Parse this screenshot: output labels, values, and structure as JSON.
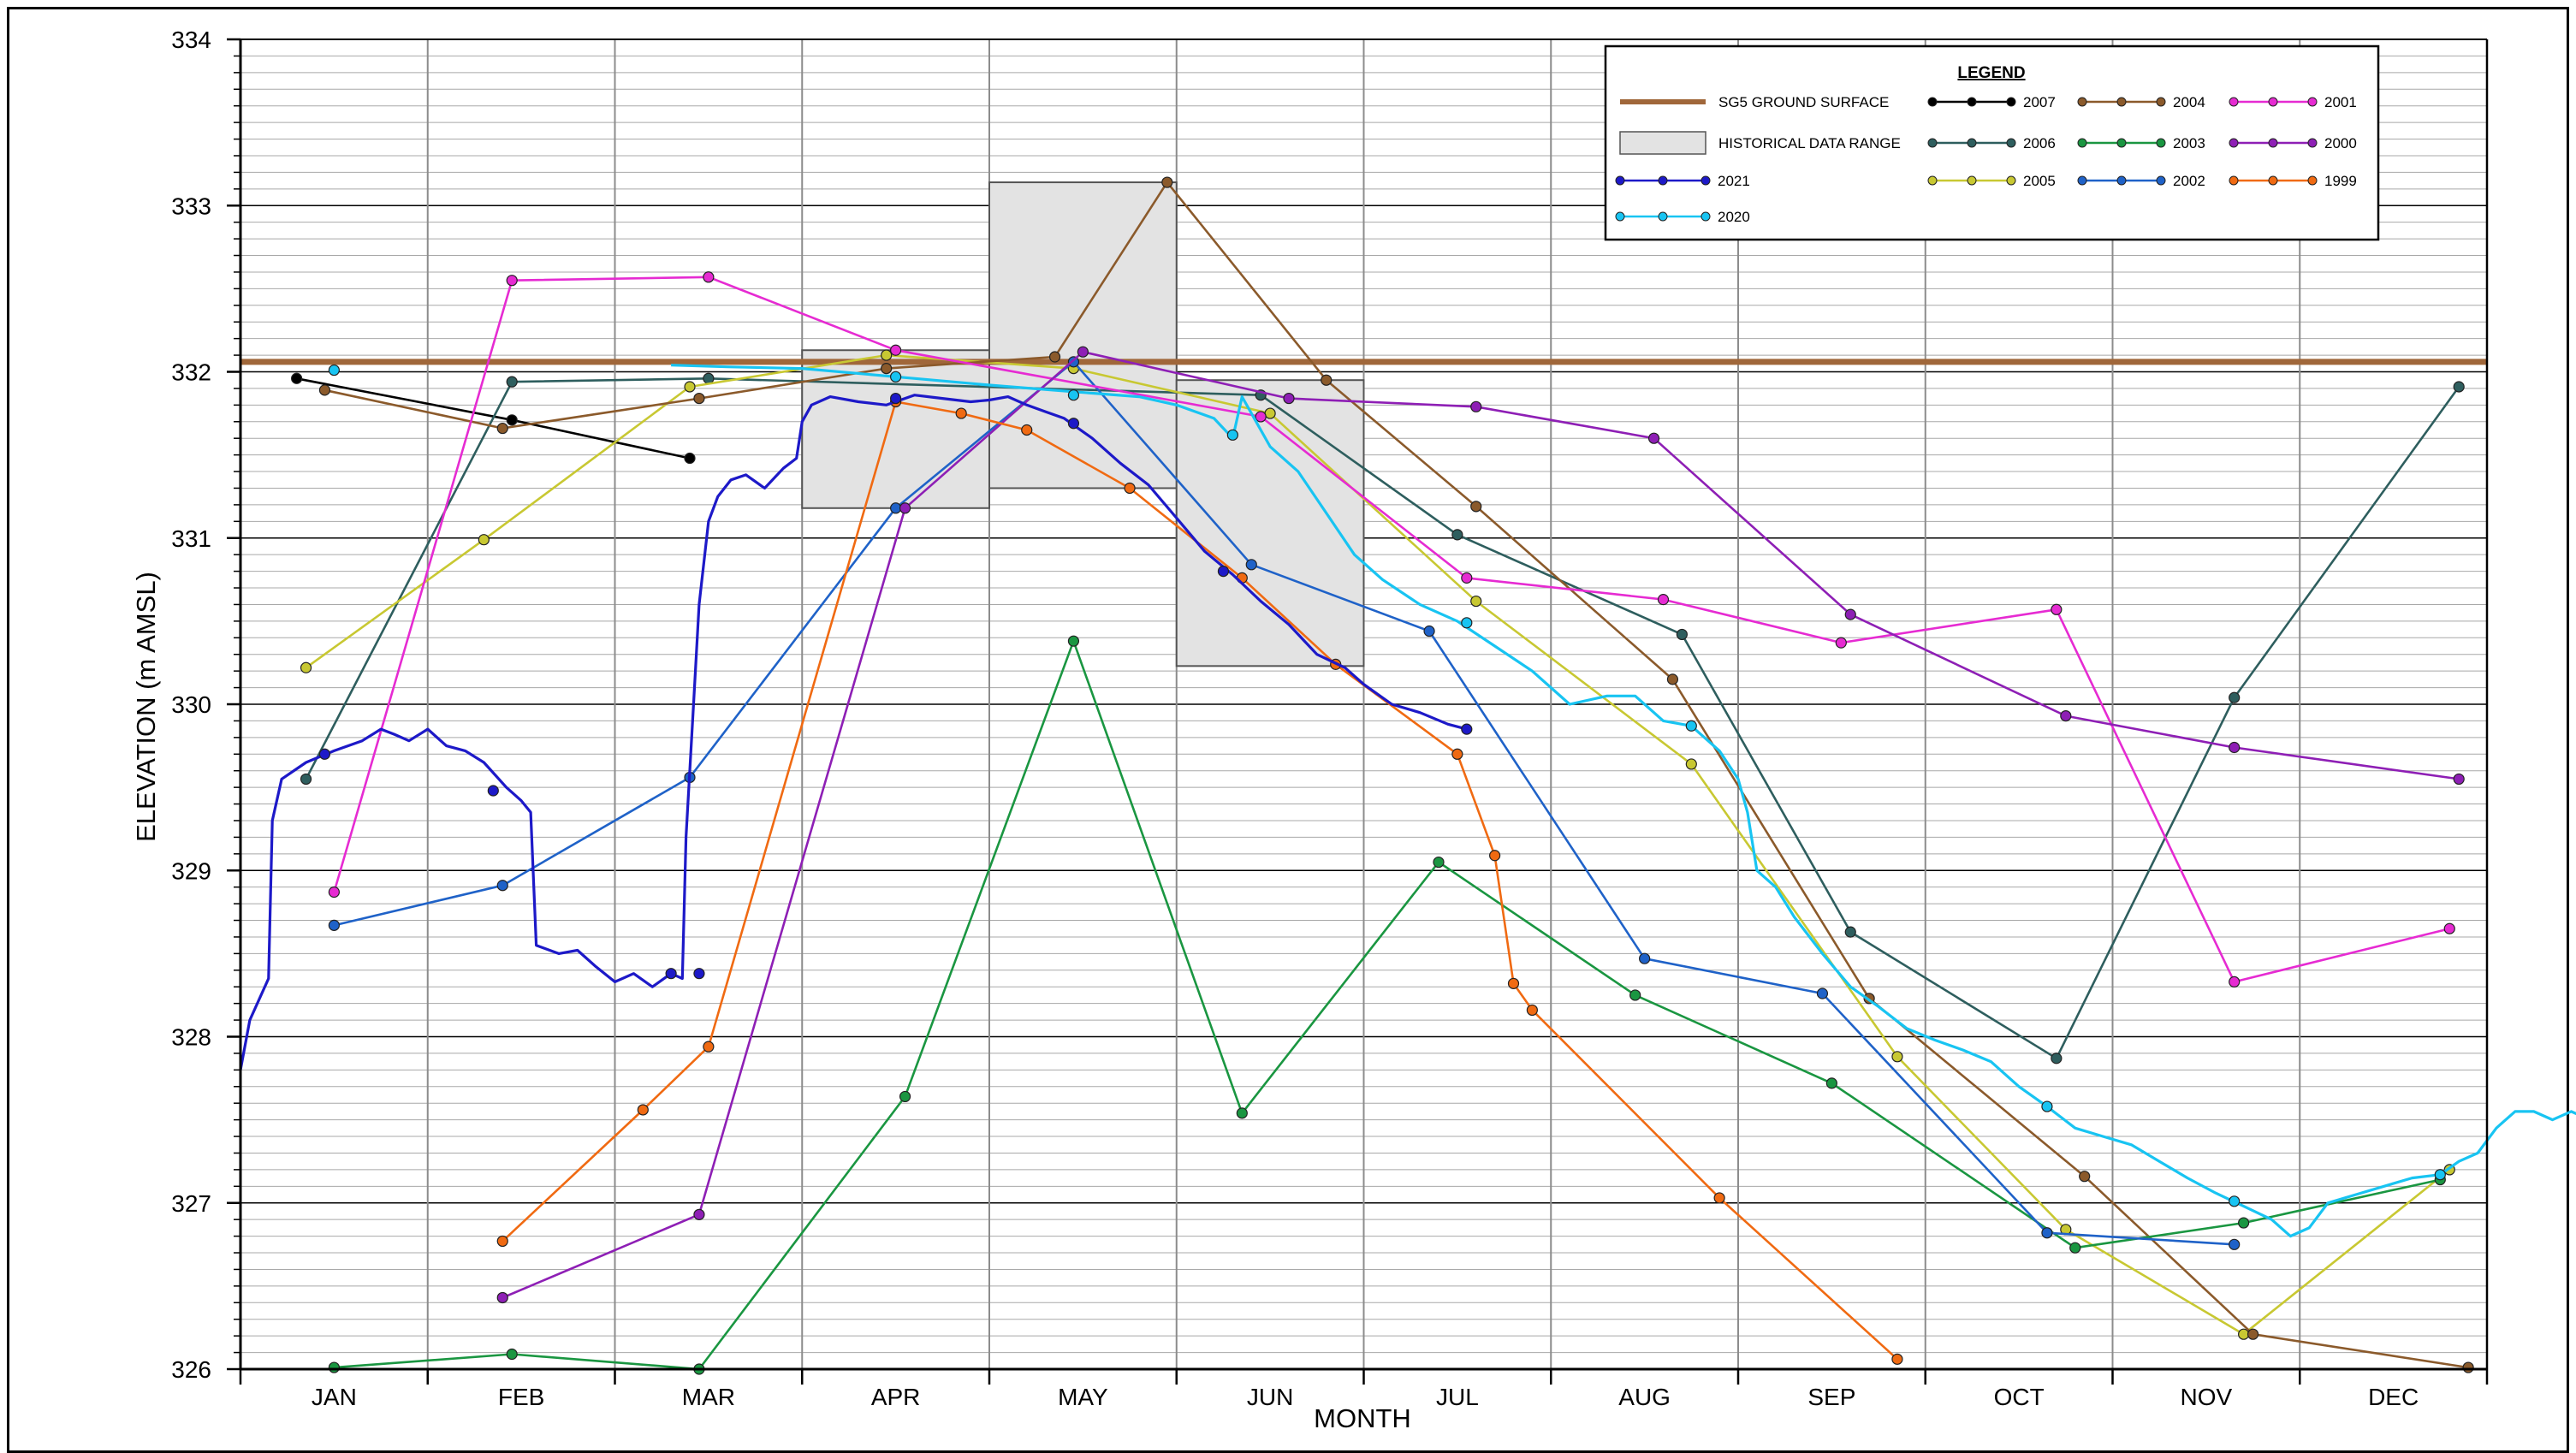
{
  "chart_data": {
    "type": "line",
    "xlabel": "MONTH",
    "ylabel": "ELEVATION (m AMSL)",
    "ylim": [
      326,
      334
    ],
    "yticks": [
      "326",
      "327",
      "328",
      "329",
      "330",
      "331",
      "332",
      "333",
      "334"
    ],
    "months": [
      "JAN",
      "FEB",
      "MAR",
      "APR",
      "MAY",
      "JUN",
      "JUL",
      "AUG",
      "SEP",
      "OCT",
      "NOV",
      "DEC"
    ],
    "grid": true,
    "legend": {
      "title": "LEGEND",
      "placement": "top-right"
    },
    "ground_surface": {
      "name": "SG5 GROUND SURFACE",
      "value": 332.06,
      "color": "#a0673a"
    },
    "historical_range": {
      "name": "HISTORICAL DATA RANGE",
      "boxes": [
        {
          "x0": 3.0,
          "x1": 4.0,
          "y0": 331.18,
          "y1": 332.13
        },
        {
          "x0": 4.0,
          "x1": 5.0,
          "y0": 331.3,
          "y1": 333.14
        },
        {
          "x0": 5.0,
          "x1": 6.0,
          "y0": 330.23,
          "y1": 331.95
        }
      ]
    },
    "series": [
      {
        "name": "2007",
        "color": "#000000",
        "points": [
          [
            0.3,
            331.96
          ],
          [
            1.45,
            331.71
          ],
          [
            2.4,
            331.48
          ]
        ]
      },
      {
        "name": "2006",
        "color": "#2e5e5e",
        "points": [
          [
            0.35,
            329.55
          ],
          [
            1.45,
            331.94
          ],
          [
            2.5,
            331.96
          ],
          [
            5.45,
            331.86
          ],
          [
            6.5,
            331.02
          ],
          [
            7.7,
            330.42
          ],
          [
            8.6,
            328.63
          ],
          [
            9.7,
            327.87
          ],
          [
            10.65,
            330.04
          ],
          [
            11.85,
            331.91
          ]
        ]
      },
      {
        "name": "2005",
        "color": "#c8c832",
        "points": [
          [
            0.35,
            330.22
          ],
          [
            1.3,
            330.99
          ],
          [
            2.4,
            331.91
          ],
          [
            3.45,
            332.1
          ],
          [
            4.45,
            332.02
          ],
          [
            5.5,
            331.75
          ],
          [
            6.6,
            330.62
          ],
          [
            7.75,
            329.64
          ],
          [
            8.85,
            327.88
          ],
          [
            9.75,
            326.84
          ],
          [
            10.7,
            326.21
          ],
          [
            11.8,
            327.2
          ]
        ]
      },
      {
        "name": "2004",
        "color": "#8b5a2b",
        "points": [
          [
            0.45,
            331.89
          ],
          [
            1.4,
            331.66
          ],
          [
            2.45,
            331.84
          ],
          [
            3.45,
            332.02
          ],
          [
            4.35,
            332.09
          ],
          [
            4.95,
            333.14
          ],
          [
            5.8,
            331.95
          ],
          [
            6.6,
            331.19
          ],
          [
            7.65,
            330.15
          ],
          [
            8.7,
            328.23
          ],
          [
            9.85,
            327.16
          ],
          [
            10.75,
            326.21
          ],
          [
            11.9,
            326.01
          ]
        ]
      },
      {
        "name": "2003",
        "color": "#1a9641",
        "points": [
          [
            0.5,
            326.01
          ],
          [
            1.45,
            326.09
          ],
          [
            2.45,
            326.0
          ],
          [
            3.55,
            327.64
          ],
          [
            4.45,
            330.38
          ],
          [
            5.35,
            327.54
          ],
          [
            6.4,
            329.05
          ],
          [
            7.45,
            328.25
          ],
          [
            8.5,
            327.72
          ],
          [
            9.8,
            326.73
          ],
          [
            10.7,
            326.88
          ],
          [
            11.75,
            327.14
          ]
        ]
      },
      {
        "name": "2002",
        "color": "#1f62c8",
        "points": [
          [
            0.5,
            328.67
          ],
          [
            1.4,
            328.91
          ],
          [
            2.4,
            329.56
          ],
          [
            3.5,
            331.18
          ],
          [
            4.45,
            332.06
          ],
          [
            5.4,
            330.84
          ],
          [
            6.35,
            330.44
          ],
          [
            7.5,
            328.47
          ],
          [
            8.45,
            328.26
          ],
          [
            9.65,
            326.82
          ],
          [
            10.65,
            326.75
          ]
        ]
      },
      {
        "name": "2001",
        "color": "#e62bd2",
        "points": [
          [
            0.5,
            328.87
          ],
          [
            1.45,
            332.55
          ],
          [
            2.5,
            332.57
          ],
          [
            3.5,
            332.13
          ],
          [
            5.45,
            331.73
          ],
          [
            6.55,
            330.76
          ],
          [
            7.6,
            330.63
          ],
          [
            8.55,
            330.37
          ],
          [
            9.7,
            330.57
          ],
          [
            10.65,
            328.33
          ],
          [
            11.8,
            328.65
          ]
        ]
      },
      {
        "name": "2000",
        "color": "#8e1fb5",
        "points": [
          [
            1.4,
            326.43
          ],
          [
            2.45,
            326.93
          ],
          [
            3.55,
            331.18
          ],
          [
            4.5,
            332.12
          ],
          [
            5.6,
            331.84
          ],
          [
            6.6,
            331.79
          ],
          [
            7.55,
            331.6
          ],
          [
            8.6,
            330.54
          ],
          [
            9.75,
            329.93
          ],
          [
            10.65,
            329.74
          ],
          [
            11.85,
            329.55
          ]
        ]
      },
      {
        "name": "1999",
        "color": "#f06a12",
        "points": [
          [
            1.4,
            326.77
          ],
          [
            2.15,
            327.56
          ],
          [
            2.5,
            327.94
          ],
          [
            3.5,
            331.82
          ],
          [
            3.85,
            331.75
          ],
          [
            4.2,
            331.65
          ],
          [
            4.75,
            331.3
          ],
          [
            5.35,
            330.76
          ],
          [
            5.85,
            330.24
          ],
          [
            6.5,
            329.7
          ],
          [
            6.7,
            329.09
          ],
          [
            6.8,
            328.32
          ],
          [
            6.9,
            328.16
          ],
          [
            7.9,
            327.03
          ],
          [
            8.85,
            326.06
          ]
        ]
      },
      {
        "name": "2021",
        "color": "#1d19c8",
        "markers": [
          [
            0.45,
            329.7
          ],
          [
            1.35,
            329.48
          ],
          [
            2.3,
            328.38
          ],
          [
            2.45,
            328.38
          ],
          [
            3.5,
            331.84
          ],
          [
            4.45,
            331.69
          ],
          [
            5.25,
            330.8
          ],
          [
            6.55,
            329.85
          ]
        ],
        "points": [
          [
            0.0,
            327.8
          ],
          [
            0.05,
            328.1
          ],
          [
            0.15,
            328.35
          ],
          [
            0.17,
            329.3
          ],
          [
            0.22,
            329.55
          ],
          [
            0.35,
            329.65
          ],
          [
            0.5,
            329.72
          ],
          [
            0.65,
            329.78
          ],
          [
            0.75,
            329.85
          ],
          [
            0.82,
            329.82
          ],
          [
            0.9,
            329.78
          ],
          [
            1.0,
            329.85
          ],
          [
            1.1,
            329.75
          ],
          [
            1.2,
            329.72
          ],
          [
            1.3,
            329.65
          ],
          [
            1.42,
            329.5
          ],
          [
            1.5,
            329.42
          ],
          [
            1.55,
            329.35
          ],
          [
            1.58,
            328.55
          ],
          [
            1.7,
            328.5
          ],
          [
            1.8,
            328.52
          ],
          [
            1.9,
            328.42
          ],
          [
            2.0,
            328.33
          ],
          [
            2.1,
            328.38
          ],
          [
            2.2,
            328.3
          ],
          [
            2.3,
            328.38
          ],
          [
            2.36,
            328.35
          ],
          [
            2.38,
            329.2
          ],
          [
            2.42,
            330.0
          ],
          [
            2.45,
            330.6
          ],
          [
            2.5,
            331.1
          ],
          [
            2.55,
            331.25
          ],
          [
            2.62,
            331.35
          ],
          [
            2.7,
            331.38
          ],
          [
            2.8,
            331.3
          ],
          [
            2.9,
            331.42
          ],
          [
            2.97,
            331.48
          ],
          [
            3.0,
            331.7
          ],
          [
            3.05,
            331.8
          ],
          [
            3.15,
            331.85
          ],
          [
            3.3,
            331.82
          ],
          [
            3.45,
            331.8
          ],
          [
            3.6,
            331.86
          ],
          [
            3.75,
            331.84
          ],
          [
            3.9,
            331.82
          ],
          [
            4.0,
            331.83
          ],
          [
            4.1,
            331.85
          ],
          [
            4.2,
            331.8
          ],
          [
            4.3,
            331.76
          ],
          [
            4.4,
            331.72
          ],
          [
            4.55,
            331.6
          ],
          [
            4.7,
            331.45
          ],
          [
            4.85,
            331.32
          ],
          [
            5.0,
            331.12
          ],
          [
            5.15,
            330.92
          ],
          [
            5.3,
            330.78
          ],
          [
            5.45,
            330.62
          ],
          [
            5.6,
            330.48
          ],
          [
            5.75,
            330.3
          ],
          [
            5.9,
            330.22
          ],
          [
            6.0,
            330.12
          ],
          [
            6.15,
            330.0
          ],
          [
            6.3,
            329.95
          ],
          [
            6.45,
            329.88
          ],
          [
            6.55,
            329.85
          ]
        ]
      },
      {
        "name": "2020",
        "color": "#18c4f2",
        "markers": [
          [
            0.5,
            332.01
          ],
          [
            3.5,
            331.97
          ],
          [
            4.45,
            331.86
          ],
          [
            5.3,
            331.62
          ],
          [
            6.55,
            330.49
          ],
          [
            7.75,
            329.87
          ],
          [
            9.65,
            327.58
          ],
          [
            10.65,
            327.01
          ],
          [
            11.75,
            327.17
          ]
        ],
        "points": [
          [
            2.3,
            332.04
          ],
          [
            2.6,
            332.03
          ],
          [
            3.0,
            332.02
          ],
          [
            3.5,
            331.97
          ],
          [
            4.0,
            331.92
          ],
          [
            4.45,
            331.88
          ],
          [
            4.8,
            331.85
          ],
          [
            5.0,
            331.8
          ],
          [
            5.2,
            331.72
          ],
          [
            5.3,
            331.6
          ],
          [
            5.35,
            331.85
          ],
          [
            5.5,
            331.55
          ],
          [
            5.65,
            331.4
          ],
          [
            5.8,
            331.15
          ],
          [
            5.95,
            330.9
          ],
          [
            6.1,
            330.75
          ],
          [
            6.3,
            330.6
          ],
          [
            6.5,
            330.5
          ],
          [
            6.7,
            330.35
          ],
          [
            6.9,
            330.2
          ],
          [
            7.1,
            330.0
          ],
          [
            7.3,
            330.05
          ],
          [
            7.45,
            330.05
          ],
          [
            7.6,
            329.9
          ],
          [
            7.75,
            329.87
          ],
          [
            7.9,
            329.72
          ],
          [
            8.0,
            329.55
          ],
          [
            8.05,
            329.35
          ],
          [
            8.1,
            329.0
          ],
          [
            8.2,
            328.9
          ],
          [
            8.3,
            328.72
          ],
          [
            8.45,
            328.5
          ],
          [
            8.6,
            328.3
          ],
          [
            8.75,
            328.18
          ],
          [
            8.9,
            328.05
          ],
          [
            9.05,
            327.98
          ],
          [
            9.2,
            327.92
          ],
          [
            9.35,
            327.85
          ],
          [
            9.5,
            327.7
          ],
          [
            9.65,
            327.58
          ],
          [
            9.8,
            327.45
          ],
          [
            9.95,
            327.4
          ],
          [
            10.1,
            327.35
          ],
          [
            10.25,
            327.25
          ],
          [
            10.4,
            327.15
          ],
          [
            10.55,
            327.06
          ],
          [
            10.7,
            326.98
          ],
          [
            10.85,
            326.9
          ],
          [
            10.95,
            326.8
          ],
          [
            11.05,
            326.85
          ],
          [
            11.15,
            327.0
          ],
          [
            11.3,
            327.05
          ],
          [
            11.45,
            327.1
          ],
          [
            11.6,
            327.15
          ],
          [
            11.75,
            327.17
          ],
          [
            11.85,
            327.25
          ],
          [
            11.95,
            327.3
          ],
          [
            12.05,
            327.45
          ],
          [
            12.15,
            327.55
          ],
          [
            12.25,
            327.55
          ],
          [
            12.35,
            327.5
          ],
          [
            12.45,
            327.55
          ],
          [
            12.55,
            327.5
          ],
          [
            12.6,
            327.7
          ],
          [
            12.62,
            327.85
          ]
        ]
      }
    ]
  }
}
